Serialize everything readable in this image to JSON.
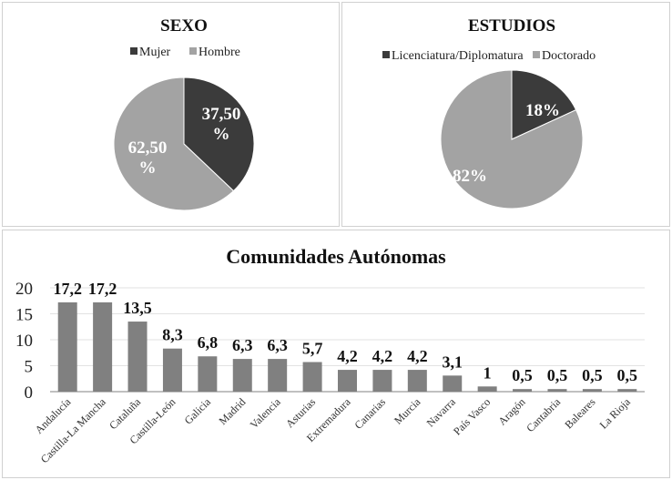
{
  "colors": {
    "dark": "#3b3b3b",
    "light": "#a3a3a3",
    "bar": "#808080",
    "grid": "#e2e2e2"
  },
  "chart_data": [
    {
      "type": "pie",
      "title": "SEXO",
      "legend_position": "top",
      "slices": [
        {
          "name": "Mujer",
          "value": 37.5,
          "label": "37,50 %",
          "color": "#3b3b3b"
        },
        {
          "name": "Hombre",
          "value": 62.5,
          "label": "62,50 %",
          "color": "#a3a3a3"
        }
      ]
    },
    {
      "type": "pie",
      "title": "ESTUDIOS",
      "legend_position": "top",
      "slices": [
        {
          "name": "Licenciatura/Diplomatura",
          "value": 18,
          "label": "18%",
          "color": "#3b3b3b"
        },
        {
          "name": "Doctorado",
          "value": 82,
          "label": "82%",
          "color": "#a3a3a3"
        }
      ]
    },
    {
      "type": "bar",
      "title": "Comunidades Autónomas",
      "xlabel": "",
      "ylabel": "",
      "ylim": [
        0,
        20
      ],
      "yticks": [
        0,
        5,
        10,
        15,
        20
      ],
      "grid": true,
      "categories": [
        "Andalucía",
        "Castilla-La Mancha",
        "Cataluña",
        "Castilla-León",
        "Galicia",
        "Madrid",
        "Valencia",
        "Asturias",
        "Extremadura",
        "Canarias",
        "Murcia",
        "Navarra",
        "País Vasco",
        "Aragón",
        "Cantabria",
        "Baleares",
        "La Rioja"
      ],
      "values": [
        17.2,
        17.2,
        13.5,
        8.3,
        6.8,
        6.3,
        6.3,
        5.7,
        4.2,
        4.2,
        4.2,
        3.1,
        1,
        0.5,
        0.5,
        0.5,
        0.5
      ],
      "data_labels": [
        "17,2",
        "17,2",
        "13,5",
        "8,3",
        "6,8",
        "6,3",
        "6,3",
        "5,7",
        "4,2",
        "4,2",
        "4,2",
        "3,1",
        "1",
        "0,5",
        "0,5",
        "0,5",
        "0,5"
      ]
    }
  ]
}
